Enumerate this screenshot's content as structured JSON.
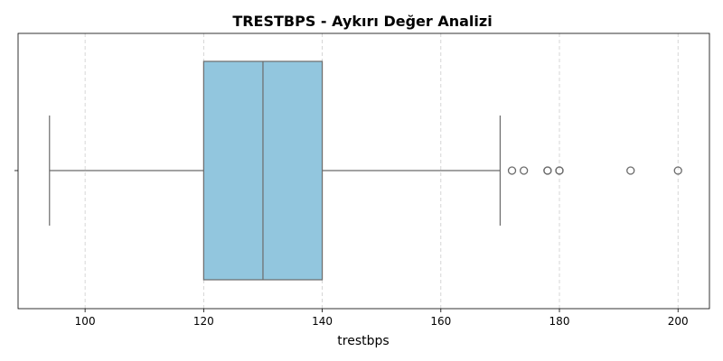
{
  "chart_data": {
    "type": "boxplot",
    "title": "TRESTBPS - Aykırı Değer Analizi",
    "xlabel": "trestbps",
    "ylabel": "",
    "xlim": [
      88.7,
      205.3
    ],
    "x_ticks": [
      100,
      120,
      140,
      160,
      180,
      200
    ],
    "x_tick_labels": [
      "100",
      "120",
      "140",
      "160",
      "180",
      "200"
    ],
    "grid": {
      "x": true,
      "y": false,
      "style": "dashed"
    },
    "series": [
      {
        "whisker_low": 94,
        "q1": 120,
        "median": 130,
        "q3": 140,
        "whisker_high": 170,
        "outliers": [
          172,
          174,
          178,
          178,
          180,
          180,
          192,
          200
        ]
      }
    ],
    "colors": {
      "box_fill": "#92c6de",
      "box_line": "#6b6b6b",
      "grid": "#cccccc",
      "outlier_edge": "#6b6b6b"
    }
  }
}
